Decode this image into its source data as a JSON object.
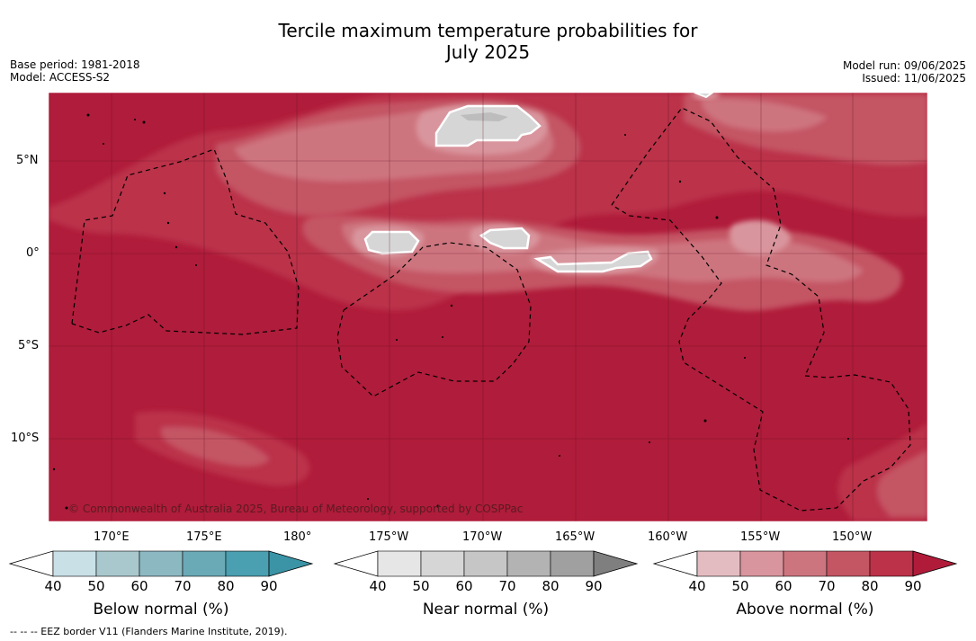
{
  "title_line1": "Tercile maximum temperature probabilities for",
  "title_line2": "July 2025",
  "meta_left": [
    "Base period: 1981-2018",
    "Model: ACCESS-S2"
  ],
  "meta_right": [
    "Model run: 09/06/2025",
    "Issued: 11/06/2025"
  ],
  "lat_labels": [
    "5°N",
    "0°",
    "5°S",
    "10°S"
  ],
  "lon_labels": [
    "170°E",
    "175°E",
    "180°",
    "175°W",
    "170°W",
    "165°W",
    "160°W",
    "155°W",
    "150°W"
  ],
  "copyright": "© Commonwealth of Australia 2025, Bureau of Meteorology, supported by COSPPac",
  "colorbars": [
    {
      "label": "Below normal (%)",
      "ticks": [
        "40",
        "50",
        "60",
        "70",
        "80",
        "90"
      ],
      "colors": [
        "#ffffff",
        "#c8e0e6",
        "#a9c8cd",
        "#8cb8c2",
        "#6aaab7",
        "#4a9fb0",
        "#3a94a6"
      ]
    },
    {
      "label": "Near normal (%)",
      "ticks": [
        "40",
        "50",
        "60",
        "70",
        "80",
        "90"
      ],
      "colors": [
        "#ffffff",
        "#e6e6e6",
        "#d6d6d6",
        "#c6c6c6",
        "#b3b3b3",
        "#a0a0a0",
        "#7f7f7f"
      ]
    },
    {
      "label": "Above normal (%)",
      "ticks": [
        "40",
        "50",
        "60",
        "70",
        "80",
        "90"
      ],
      "colors": [
        "#ffffff",
        "#e3bcc1",
        "#d9959d",
        "#cd757f",
        "#c45563",
        "#bb3249",
        "#b11b3a"
      ]
    }
  ],
  "footer": "--  --  -- EEZ border V11 (Flanders Marine Institute, 2019).",
  "map_colors": {
    "deep": "#b01c3b",
    "c80": "#bb3249",
    "c70": "#c45563",
    "c60": "#cd757f",
    "c50": "#d9959d",
    "near": "#d6d6d6"
  }
}
